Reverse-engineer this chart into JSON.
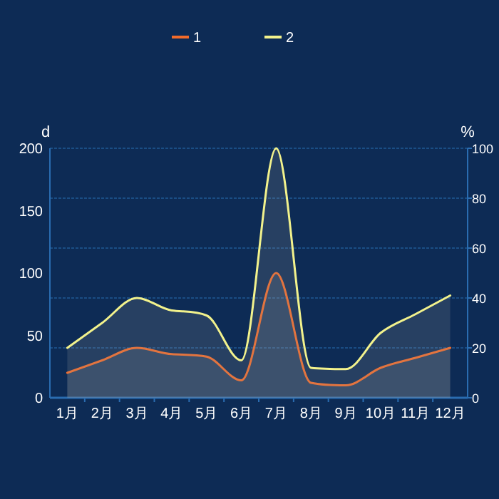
{
  "chart_data": {
    "type": "area",
    "categories": [
      "1月",
      "2月",
      "3月",
      "4月",
      "5月",
      "6月",
      "7月",
      "8月",
      "9月",
      "10月",
      "11月",
      "12月"
    ],
    "series": [
      {
        "name": "1",
        "color": "#f26b2a",
        "values": [
          20,
          30,
          40,
          35,
          33,
          14,
          100,
          12,
          10,
          24,
          32,
          40
        ]
      },
      {
        "name": "2",
        "color": "#f2f28c",
        "values": [
          40,
          60,
          80,
          70,
          66,
          30,
          200,
          24,
          23,
          52,
          67,
          82
        ]
      }
    ],
    "ylabel": "d",
    "y2label": "%",
    "ylim": [
      0,
      200
    ],
    "yticks": [
      0,
      50,
      100,
      150,
      200
    ],
    "y2lim": [
      0,
      100
    ],
    "y2ticks": [
      0,
      20,
      40,
      60,
      80,
      100
    ],
    "grid": true,
    "legend": "top"
  }
}
